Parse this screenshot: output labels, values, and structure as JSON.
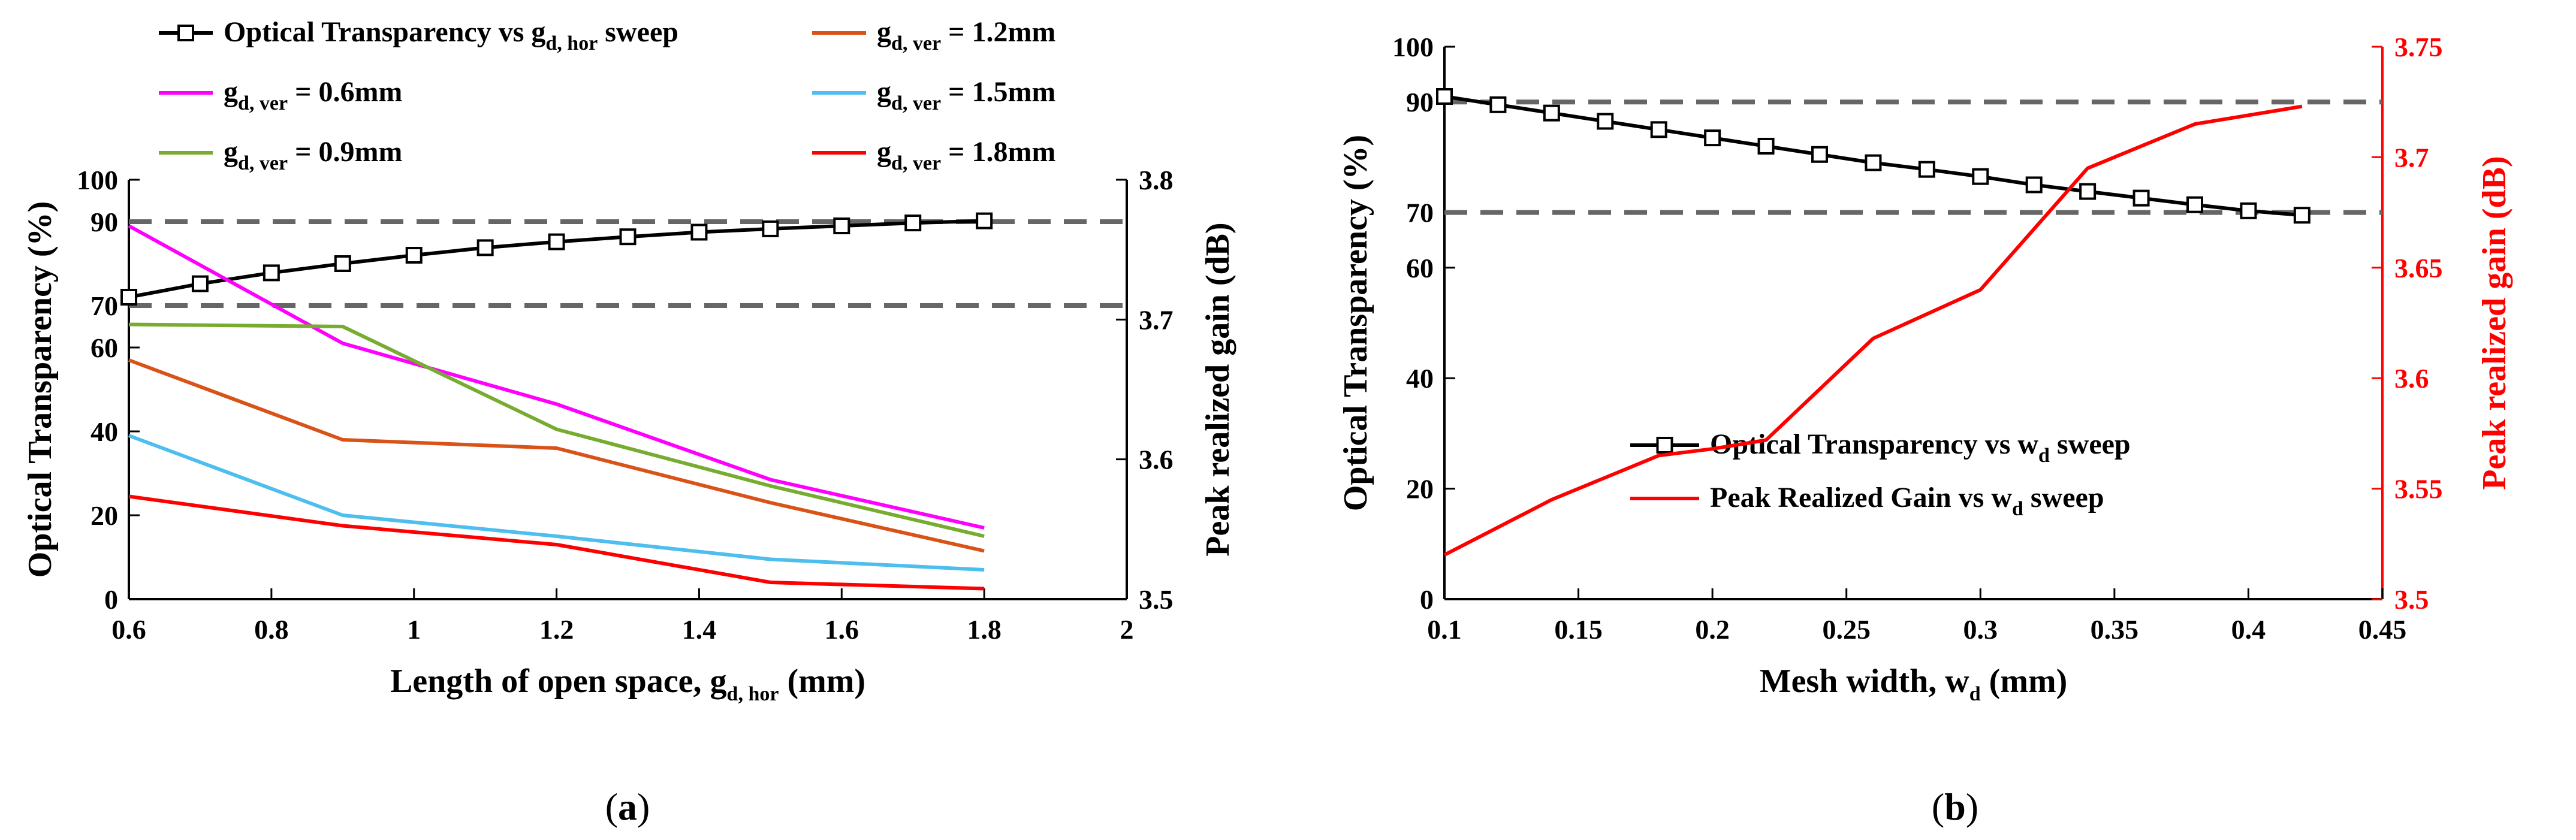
{
  "chart_data": [
    {
      "id": "a",
      "type": "line",
      "caption": "(a)",
      "xlabel": "Length of open space, g",
      "xlabel_sub": "d, hor",
      "xlabel_unit": " (mm)",
      "ylabel": "Optical Transparency (%)",
      "y2label": "Peak realized gain (dB)",
      "xlim": [
        0.6,
        2
      ],
      "xticks": [
        "0.6",
        "0.8",
        "1",
        "1.2",
        "1.4",
        "1.6",
        "1.8",
        "2"
      ],
      "xtick_values": [
        0.6,
        0.8,
        1,
        1.2,
        1.4,
        1.6,
        1.8,
        2
      ],
      "ylim": [
        0,
        100
      ],
      "yticks": [
        "0",
        "20",
        "40",
        "60",
        "70",
        "90",
        "100"
      ],
      "ytick_values": [
        0,
        20,
        40,
        60,
        70,
        90,
        100
      ],
      "y2lim": [
        3.5,
        3.8
      ],
      "y2ticks": [
        "3.5",
        "3.6",
        "3.7",
        "3.8"
      ],
      "y2tick_values": [
        3.5,
        3.6,
        3.7,
        3.8
      ],
      "reference_lines_y": [
        70,
        90
      ],
      "series": [
        {
          "label_main": "Optical Transparency vs g",
          "label_sub": "d, hor",
          "label_tail": " sweep",
          "color": "#000000",
          "marker": "square",
          "axis": "left",
          "x": [
            0.6,
            0.7,
            0.8,
            0.9,
            1.0,
            1.1,
            1.2,
            1.3,
            1.4,
            1.5,
            1.6,
            1.7,
            1.8
          ],
          "y": [
            72,
            75.2,
            77.8,
            80,
            82,
            83.8,
            85.2,
            86.4,
            87.5,
            88.3,
            89,
            89.7,
            90.2
          ]
        },
        {
          "label_main": "g",
          "label_sub": "d, ver",
          "label_tail": " = 0.6mm",
          "color": "#ff00ff",
          "axis": "left",
          "x": [
            0.6,
            0.9,
            1.2,
            1.5,
            1.8
          ],
          "y": [
            89,
            61,
            46.5,
            28.5,
            17
          ]
        },
        {
          "label_main": "g",
          "label_sub": "d, ver",
          "label_tail": " = 0.9mm",
          "color": "#77ac30",
          "axis": "left",
          "x": [
            0.6,
            0.9,
            1.2,
            1.5,
            1.8
          ],
          "y": [
            65.5,
            65,
            40.5,
            27,
            15
          ]
        },
        {
          "label_main": "g",
          "label_sub": "d, ver",
          "label_tail": " = 1.2mm",
          "color": "#d95319",
          "axis": "left",
          "x": [
            0.6,
            0.9,
            1.2,
            1.5,
            1.8
          ],
          "y": [
            57,
            38,
            36,
            23,
            11.5
          ]
        },
        {
          "label_main": "g",
          "label_sub": "d, ver",
          "label_tail": " = 1.5mm",
          "color": "#4dbeee",
          "axis": "left",
          "x": [
            0.6,
            0.9,
            1.2,
            1.5,
            1.8
          ],
          "y": [
            39,
            20,
            15,
            9.5,
            7
          ]
        },
        {
          "label_main": "g",
          "label_sub": "d, ver",
          "label_tail": " = 1.8mm",
          "color": "#ff0000",
          "axis": "left",
          "x": [
            0.6,
            0.9,
            1.2,
            1.5,
            1.8
          ],
          "y": [
            24.5,
            17.5,
            13,
            4,
            2.5
          ]
        }
      ]
    },
    {
      "id": "b",
      "type": "line",
      "caption": "(b)",
      "xlabel": "Mesh width, w",
      "xlabel_sub": "d",
      "xlabel_unit": " (mm)",
      "ylabel": "Optical Transparency (%)",
      "y2label": "Peak realized gain (dB)",
      "y2_color": "#ff0000",
      "xlim": [
        0.1,
        0.45
      ],
      "xticks": [
        "0.1",
        "0.15",
        "0.2",
        "0.25",
        "0.3",
        "0.35",
        "0.4",
        "0.45"
      ],
      "xtick_values": [
        0.1,
        0.15,
        0.2,
        0.25,
        0.3,
        0.35,
        0.4,
        0.45
      ],
      "ylim": [
        0,
        100
      ],
      "yticks": [
        "0",
        "20",
        "40",
        "60",
        "70",
        "90",
        "100"
      ],
      "ytick_values": [
        0,
        20,
        40,
        60,
        70,
        90,
        100
      ],
      "y2lim": [
        3.5,
        3.75
      ],
      "y2ticks": [
        "3.5",
        "3.55",
        "3.6",
        "3.65",
        "3.7",
        "3.75"
      ],
      "y2tick_values": [
        3.5,
        3.55,
        3.6,
        3.65,
        3.7,
        3.75
      ],
      "reference_lines_y": [
        70,
        90
      ],
      "series": [
        {
          "label_main": "Optical Transparency vs w",
          "label_sub": "d",
          "label_tail": " sweep",
          "color": "#000000",
          "marker": "square",
          "axis": "left",
          "x": [
            0.1,
            0.12,
            0.14,
            0.16,
            0.18,
            0.2,
            0.22,
            0.24,
            0.26,
            0.28,
            0.3,
            0.32,
            0.34,
            0.36,
            0.38,
            0.4,
            0.42
          ],
          "y": [
            91,
            89.5,
            88,
            86.5,
            85,
            83.5,
            82,
            80.5,
            79,
            77.8,
            76.5,
            75,
            73.8,
            72.6,
            71.4,
            70.3,
            69.5
          ]
        },
        {
          "label_main": "Peak Realized Gain vs w",
          "label_sub": "d",
          "label_tail": " sweep",
          "color": "#ff0000",
          "axis": "right",
          "x": [
            0.1,
            0.14,
            0.18,
            0.2,
            0.22,
            0.26,
            0.3,
            0.34,
            0.38,
            0.42
          ],
          "y": [
            3.52,
            3.545,
            3.565,
            3.568,
            3.572,
            3.618,
            3.64,
            3.695,
            3.715,
            3.723
          ]
        }
      ]
    }
  ]
}
